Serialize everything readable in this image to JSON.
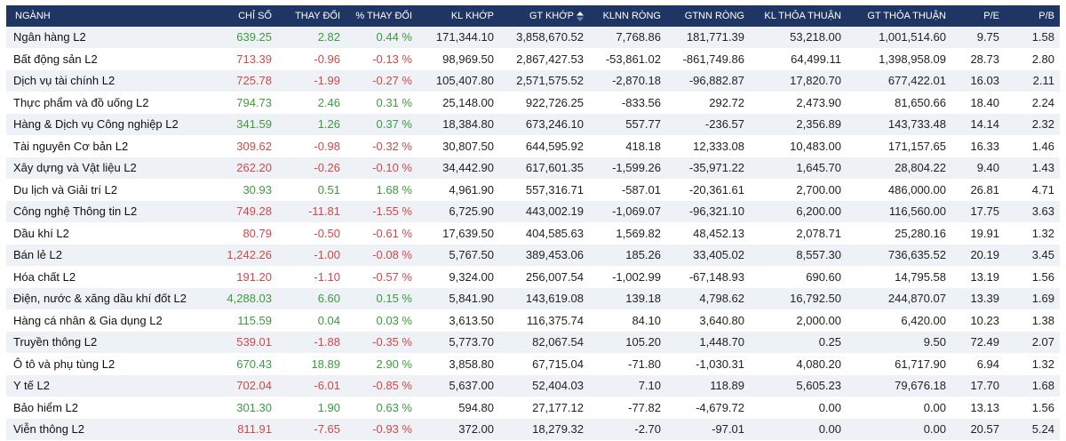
{
  "headers": {
    "nganh": "NGÀNH",
    "chiso": "CHỈ SỐ",
    "thaydoi": "THAY ĐỔI",
    "pct": "% THAY ĐỔI",
    "klkhop": "KL KHỚP",
    "gtkhop": "GT KHỚP",
    "klnn": "KLNN RÒNG",
    "gtnn": "GTNN RÒNG",
    "kltt": "KL THỎA THUẬN",
    "gttt": "GT THỎA THUẬN",
    "pe": "P/E",
    "pb": "P/B"
  },
  "colors": {
    "header_bg": "#1f3563",
    "up": "#3d9b3d",
    "down": "#d14848",
    "row_alt": "#eef1f6"
  },
  "rows": [
    {
      "name": "Ngân hàng L2",
      "index": "639.25",
      "change": "2.82",
      "pct": "0.44 %",
      "klkhop": "171,344.10",
      "gtkhop": "3,858,670.52",
      "klnn": "7,768.86",
      "gtnn": "181,771.39",
      "kltt": "53,218.00",
      "gttt": "1,001,514.60",
      "pe": "9.75",
      "pb": "1.58",
      "dir": "up"
    },
    {
      "name": "Bất động sản L2",
      "index": "713.39",
      "change": "-0.96",
      "pct": "-0.13 %",
      "klkhop": "98,969.50",
      "gtkhop": "2,867,427.53",
      "klnn": "-53,861.02",
      "gtnn": "-861,749.86",
      "kltt": "64,499.11",
      "gttt": "1,398,958.09",
      "pe": "28.73",
      "pb": "2.80",
      "dir": "down"
    },
    {
      "name": "Dịch vụ tài chính L2",
      "index": "725.78",
      "change": "-1.99",
      "pct": "-0.27 %",
      "klkhop": "105,407.80",
      "gtkhop": "2,571,575.52",
      "klnn": "-2,870.18",
      "gtnn": "-96,882.87",
      "kltt": "17,820.70",
      "gttt": "677,422.01",
      "pe": "16.03",
      "pb": "2.11",
      "dir": "down"
    },
    {
      "name": "Thực phẩm và đồ uống L2",
      "index": "794.73",
      "change": "2.46",
      "pct": "0.31 %",
      "klkhop": "25,148.00",
      "gtkhop": "922,726.25",
      "klnn": "-833.56",
      "gtnn": "292.72",
      "kltt": "2,473.90",
      "gttt": "81,650.66",
      "pe": "18.40",
      "pb": "2.24",
      "dir": "up"
    },
    {
      "name": "Hàng & Dịch vụ Công nghiệp L2",
      "index": "341.59",
      "change": "1.26",
      "pct": "0.37 %",
      "klkhop": "18,384.80",
      "gtkhop": "673,246.10",
      "klnn": "557.77",
      "gtnn": "-236.57",
      "kltt": "2,356.89",
      "gttt": "143,733.48",
      "pe": "14.14",
      "pb": "2.32",
      "dir": "up"
    },
    {
      "name": "Tài nguyên Cơ bản L2",
      "index": "309.62",
      "change": "-0.98",
      "pct": "-0.32 %",
      "klkhop": "30,807.50",
      "gtkhop": "644,595.92",
      "klnn": "418.18",
      "gtnn": "12,333.08",
      "kltt": "10,483.00",
      "gttt": "171,157.65",
      "pe": "16.33",
      "pb": "1.46",
      "dir": "down"
    },
    {
      "name": "Xây dựng và Vật liệu L2",
      "index": "262.20",
      "change": "-0.26",
      "pct": "-0.10 %",
      "klkhop": "34,442.90",
      "gtkhop": "617,601.35",
      "klnn": "-1,599.26",
      "gtnn": "-35,971.22",
      "kltt": "1,645.70",
      "gttt": "28,804.22",
      "pe": "9.40",
      "pb": "1.43",
      "dir": "down"
    },
    {
      "name": "Du lịch và Giải trí L2",
      "index": "30.93",
      "change": "0.51",
      "pct": "1.68 %",
      "klkhop": "4,961.90",
      "gtkhop": "557,316.71",
      "klnn": "-587.01",
      "gtnn": "-20,361.61",
      "kltt": "2,700.00",
      "gttt": "486,000.00",
      "pe": "26.81",
      "pb": "4.71",
      "dir": "up"
    },
    {
      "name": "Công nghệ Thông tin L2",
      "index": "749.28",
      "change": "-11.81",
      "pct": "-1.55 %",
      "klkhop": "6,725.90",
      "gtkhop": "443,002.19",
      "klnn": "-1,069.07",
      "gtnn": "-96,321.10",
      "kltt": "6,200.00",
      "gttt": "116,560.00",
      "pe": "17.75",
      "pb": "3.63",
      "dir": "down"
    },
    {
      "name": "Dầu khí L2",
      "index": "80.79",
      "change": "-0.50",
      "pct": "-0.61 %",
      "klkhop": "17,639.50",
      "gtkhop": "404,585.63",
      "klnn": "1,569.82",
      "gtnn": "48,452.13",
      "kltt": "2,078.71",
      "gttt": "25,280.16",
      "pe": "19.91",
      "pb": "1.32",
      "dir": "down"
    },
    {
      "name": "Bán lẻ L2",
      "index": "1,242.26",
      "change": "-1.00",
      "pct": "-0.08 %",
      "klkhop": "5,767.50",
      "gtkhop": "389,453.06",
      "klnn": "185.26",
      "gtnn": "33,405.02",
      "kltt": "8,557.30",
      "gttt": "736,635.52",
      "pe": "20.19",
      "pb": "3.45",
      "dir": "down"
    },
    {
      "name": "Hóa chất L2",
      "index": "191.20",
      "change": "-1.10",
      "pct": "-0.57 %",
      "klkhop": "9,324.00",
      "gtkhop": "256,007.54",
      "klnn": "-1,002.99",
      "gtnn": "-67,148.93",
      "kltt": "690.60",
      "gttt": "14,795.58",
      "pe": "13.19",
      "pb": "1.56",
      "dir": "down"
    },
    {
      "name": "Điện, nước & xăng dầu khí đốt L2",
      "index": "4,288.03",
      "change": "6.60",
      "pct": "0.15 %",
      "klkhop": "5,841.90",
      "gtkhop": "143,619.08",
      "klnn": "139.18",
      "gtnn": "4,798.62",
      "kltt": "16,792.50",
      "gttt": "244,870.07",
      "pe": "13.39",
      "pb": "1.69",
      "dir": "up"
    },
    {
      "name": "Hàng cá nhân & Gia dụng L2",
      "index": "115.59",
      "change": "0.04",
      "pct": "0.03 %",
      "klkhop": "3,613.50",
      "gtkhop": "116,375.74",
      "klnn": "84.10",
      "gtnn": "3,640.80",
      "kltt": "2,000.00",
      "gttt": "6,420.00",
      "pe": "10.23",
      "pb": "1.38",
      "dir": "up"
    },
    {
      "name": "Truyền thông L2",
      "index": "539.01",
      "change": "-1.88",
      "pct": "-0.35 %",
      "klkhop": "5,773.70",
      "gtkhop": "82,067.54",
      "klnn": "105.20",
      "gtnn": "1,448.70",
      "kltt": "0.25",
      "gttt": "9.50",
      "pe": "72.49",
      "pb": "2.07",
      "dir": "down"
    },
    {
      "name": "Ô tô và phụ tùng L2",
      "index": "670.43",
      "change": "18.89",
      "pct": "2.90 %",
      "klkhop": "3,858.80",
      "gtkhop": "67,715.04",
      "klnn": "-71.80",
      "gtnn": "-1,030.31",
      "kltt": "4,080.20",
      "gttt": "61,717.90",
      "pe": "6.94",
      "pb": "1.32",
      "dir": "up"
    },
    {
      "name": "Y tế L2",
      "index": "702.04",
      "change": "-6.01",
      "pct": "-0.85 %",
      "klkhop": "5,637.00",
      "gtkhop": "52,404.03",
      "klnn": "7.10",
      "gtnn": "118.89",
      "kltt": "5,605.23",
      "gttt": "79,676.18",
      "pe": "17.70",
      "pb": "1.68",
      "dir": "down"
    },
    {
      "name": "Bảo hiểm L2",
      "index": "301.30",
      "change": "1.90",
      "pct": "0.63 %",
      "klkhop": "594.80",
      "gtkhop": "27,177.12",
      "klnn": "-77.82",
      "gtnn": "-4,679.72",
      "kltt": "0.00",
      "gttt": "0.00",
      "pe": "13.13",
      "pb": "1.56",
      "dir": "up"
    },
    {
      "name": "Viễn thông L2",
      "index": "811.91",
      "change": "-7.65",
      "pct": "-0.93 %",
      "klkhop": "372.00",
      "gtkhop": "18,279.32",
      "klnn": "-2.70",
      "gtnn": "-97.01",
      "kltt": "0.00",
      "gttt": "0.00",
      "pe": "20.57",
      "pb": "5.24",
      "dir": "down"
    }
  ]
}
